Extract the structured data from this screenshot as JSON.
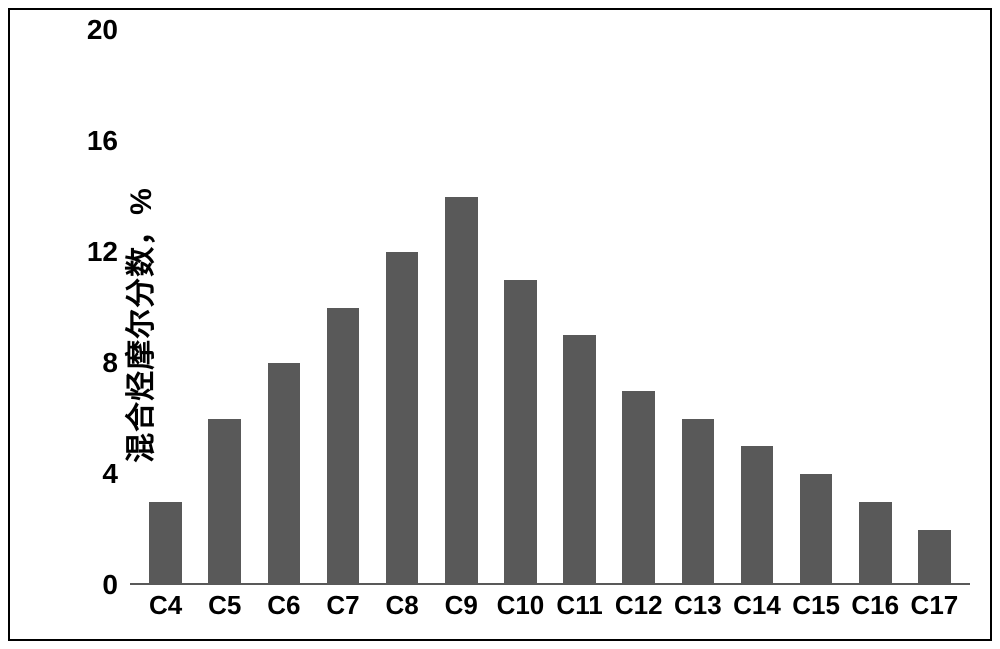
{
  "chart": {
    "type": "bar",
    "y_axis_title": "混合烃摩尔分数，%",
    "categories": [
      "C4",
      "C5",
      "C6",
      "C7",
      "C8",
      "C9",
      "C10",
      "C11",
      "C12",
      "C13",
      "C14",
      "C15",
      "C16",
      "C17"
    ],
    "values": [
      3,
      6,
      8,
      10,
      12,
      14,
      11,
      9,
      7,
      6,
      5,
      4,
      3,
      2
    ],
    "bar_color": "#595959",
    "background_color": "#ffffff",
    "border_color": "#000000",
    "ylim": [
      0,
      20
    ],
    "ytick_step": 4,
    "yticks": [
      "0",
      "4",
      "8",
      "12",
      "16",
      "20"
    ],
    "axis_label_fontsize": 30,
    "tick_label_fontsize": 28,
    "category_label_fontsize": 26,
    "font_weight": 900,
    "bar_width": 0.55,
    "baseline_color": "#595959",
    "grid": false
  }
}
